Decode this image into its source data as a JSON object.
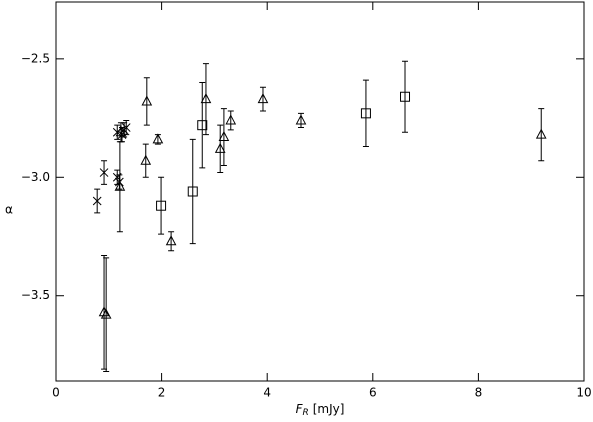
{
  "chart_data": {
    "type": "scatter",
    "xlabel": {
      "symbol": "F",
      "subscript": "R",
      "unit": "[mJy]"
    },
    "ylabel": "α",
    "xlim": [
      0,
      10
    ],
    "ylim": [
      -3.86,
      -2.26
    ],
    "xticks": [
      0,
      2,
      4,
      6,
      8,
      10
    ],
    "yticks": [
      {
        "value": -3.5,
        "label": "−3.5"
      },
      {
        "value": -3.0,
        "label": "−3.0"
      },
      {
        "value": -2.5,
        "label": "−2.5"
      }
    ],
    "series": [
      {
        "marker": "cross",
        "color": "#000000",
        "x": [
          0.78,
          0.91,
          1.16,
          1.2,
          1.16,
          1.25,
          1.29,
          1.33
        ],
        "values": [
          -3.1,
          -2.98,
          -3.0,
          -3.02,
          -2.81,
          -2.82,
          -2.8,
          -2.79
        ],
        "errors": [
          0.05,
          0.05,
          0.03,
          0.03,
          0.03,
          0.03,
          0.03,
          0.03
        ]
      },
      {
        "marker": "triangle",
        "color": "#000000",
        "x": [
          0.91,
          0.95,
          1.21,
          1.23,
          1.72,
          1.7,
          1.93,
          2.18,
          2.84,
          3.11,
          3.18,
          3.31,
          3.92,
          4.64,
          9.19
        ],
        "values": [
          -3.57,
          -3.58,
          -3.04,
          -2.81,
          -2.68,
          -2.93,
          -2.84,
          -3.27,
          -2.67,
          -2.88,
          -2.83,
          -2.76,
          -2.67,
          -2.76,
          -2.82
        ],
        "errors": [
          0.24,
          0.24,
          0.19,
          0.04,
          0.1,
          0.07,
          0.02,
          0.04,
          0.15,
          0.1,
          0.12,
          0.04,
          0.05,
          0.03,
          0.11
        ]
      },
      {
        "marker": "square",
        "color": "#000000",
        "x": [
          1.99,
          2.59,
          2.77,
          5.87,
          6.61
        ],
        "values": [
          -3.12,
          -3.06,
          -2.78,
          -2.73,
          -2.66
        ],
        "errors": [
          0.12,
          0.22,
          0.18,
          0.14,
          0.15
        ]
      }
    ]
  }
}
